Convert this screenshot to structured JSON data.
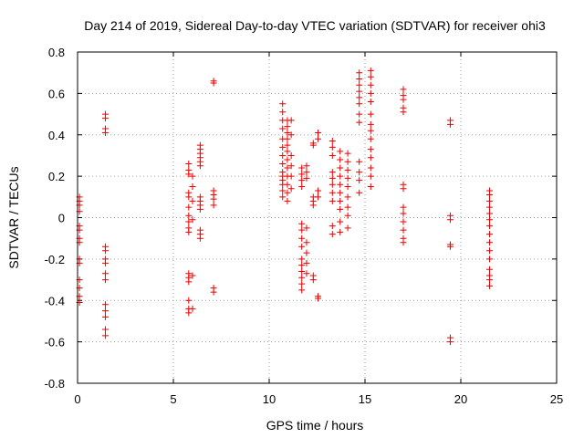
{
  "chart_data": {
    "type": "scatter",
    "title": "Day 214 of 2019, Sidereal Day-to-day VTEC variation (SDTVAR) for receiver ohi3",
    "xlabel": "GPS time / hours",
    "ylabel": "SDTVAR / TECUs",
    "xlim": [
      0,
      25
    ],
    "ylim": [
      -0.8,
      0.8
    ],
    "xticks": [
      0,
      5,
      10,
      15,
      20,
      25
    ],
    "yticks": [
      -0.8,
      -0.6,
      -0.4,
      -0.2,
      0,
      0.2,
      0.4,
      0.6,
      0.8
    ],
    "xtick_labels": [
      "0",
      "5",
      "10",
      "15",
      "20",
      "25"
    ],
    "ytick_labels": [
      "-0.8",
      "-0.6",
      "-0.4",
      "-0.2",
      "0",
      "0.2",
      "0.4",
      "0.6",
      "0.8"
    ],
    "grid": true,
    "marker": "+",
    "color": "#ee0000",
    "clusters": [
      {
        "x": 0.1,
        "y": [
          0.1,
          0.08,
          0.06,
          0.03,
          -0.04,
          -0.06,
          -0.1,
          -0.12,
          -0.2,
          -0.22,
          -0.3,
          -0.34,
          -0.38,
          -0.41
        ]
      },
      {
        "x": 1.45,
        "y": [
          0.5,
          0.48,
          0.43,
          0.41,
          -0.14,
          -0.16,
          -0.2,
          -0.22,
          -0.27,
          -0.3,
          -0.42,
          -0.45,
          -0.48,
          -0.54,
          -0.57
        ]
      },
      {
        "x": 5.8,
        "y": [
          0.26,
          0.23,
          0.21,
          0.12,
          0.1,
          0.05,
          0.01,
          -0.02,
          -0.05,
          -0.07,
          -0.27,
          -0.29,
          -0.31,
          -0.4,
          -0.44,
          -0.46
        ]
      },
      {
        "x": 6.0,
        "y": [
          0.2,
          0.15,
          0.08,
          -0.01,
          -0.28,
          -0.44
        ]
      },
      {
        "x": 6.4,
        "y": [
          0.35,
          0.33,
          0.31,
          0.29,
          0.27,
          0.25,
          0.1,
          0.08,
          0.06,
          0.04,
          -0.06,
          -0.08,
          -0.1
        ]
      },
      {
        "x": 7.1,
        "y": [
          0.66,
          0.65,
          0.13,
          0.11,
          0.09,
          0.06,
          -0.34,
          -0.36
        ]
      },
      {
        "x": 10.7,
        "y": [
          0.55,
          0.51,
          0.47,
          0.43,
          0.38,
          0.34,
          0.3,
          0.26,
          0.22,
          0.2,
          0.18,
          0.16,
          0.13,
          0.1
        ]
      },
      {
        "x": 10.95,
        "y": [
          0.47,
          0.44,
          0.41,
          0.38,
          0.35,
          0.32,
          0.28,
          0.24,
          0.2,
          0.16,
          0.12,
          0.08
        ]
      },
      {
        "x": 11.15,
        "y": [
          0.47,
          0.4,
          0.3,
          0.25,
          0.2,
          0.14
        ]
      },
      {
        "x": 11.7,
        "y": [
          0.24,
          0.21,
          0.18,
          0.15,
          -0.03,
          -0.06,
          -0.1,
          -0.14,
          -0.2,
          -0.23,
          -0.26,
          -0.29,
          -0.32,
          -0.35
        ]
      },
      {
        "x": 11.95,
        "y": [
          0.25,
          0.22,
          0.19,
          -0.05,
          -0.12,
          -0.17,
          -0.22,
          -0.27
        ]
      },
      {
        "x": 12.3,
        "y": [
          0.36,
          0.35,
          0.1,
          0.08,
          0.06,
          -0.28,
          -0.3
        ]
      },
      {
        "x": 12.55,
        "y": [
          0.41,
          0.38,
          0.13,
          0.1,
          -0.38,
          -0.39
        ]
      },
      {
        "x": 13.3,
        "y": [
          0.37,
          0.34,
          0.3,
          0.22,
          0.19,
          0.16,
          0.12,
          0.08,
          -0.04,
          -0.08
        ]
      },
      {
        "x": 13.7,
        "y": [
          0.32,
          0.28,
          0.24,
          0.2,
          0.16,
          0.12,
          0.08,
          0.04,
          -0.02,
          -0.07
        ]
      },
      {
        "x": 14.1,
        "y": [
          0.31,
          0.27,
          0.23,
          0.19,
          0.15,
          0.1,
          0.05,
          0.01,
          -0.05
        ]
      },
      {
        "x": 14.7,
        "y": [
          0.7,
          0.67,
          0.64,
          0.61,
          0.58,
          0.55,
          0.5,
          0.46,
          0.27,
          0.22,
          0.18,
          0.12
        ]
      },
      {
        "x": 15.3,
        "y": [
          0.71,
          0.68,
          0.64,
          0.6,
          0.56,
          0.5,
          0.45,
          0.42,
          0.38,
          0.33,
          0.29,
          0.24,
          0.2,
          0.15
        ]
      },
      {
        "x": 17.0,
        "y": [
          0.62,
          0.59,
          0.57,
          0.53,
          0.51,
          0.16,
          0.14,
          0.05,
          0.02,
          -0.02,
          -0.06,
          -0.1,
          -0.12
        ]
      },
      {
        "x": 19.45,
        "y": [
          0.47,
          0.45,
          0.01,
          -0.01,
          -0.13,
          -0.14,
          -0.58,
          -0.6
        ]
      },
      {
        "x": 21.5,
        "y": [
          0.13,
          0.11,
          0.08,
          0.05,
          0.02,
          -0.01,
          -0.04,
          -0.08,
          -0.12,
          -0.16,
          -0.2,
          -0.25,
          -0.28,
          -0.3,
          -0.33
        ]
      }
    ]
  }
}
